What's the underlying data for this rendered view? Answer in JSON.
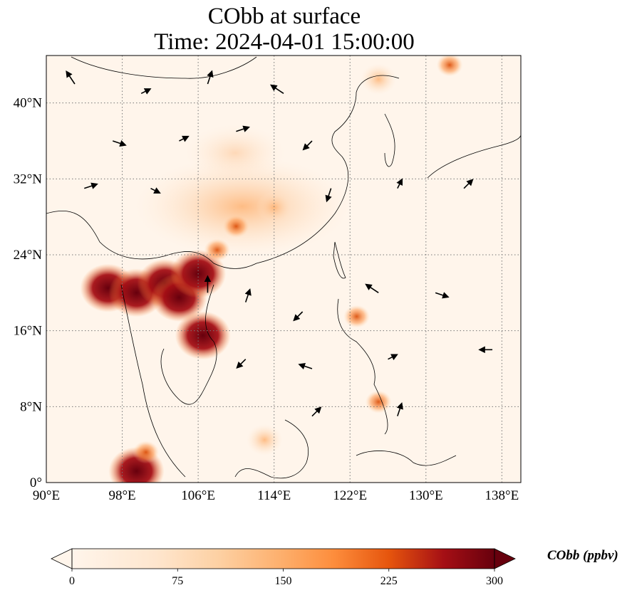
{
  "title": {
    "line1": "CObb at surface",
    "line2": "Time: 2024-04-01 15:00:00"
  },
  "map": {
    "lon_range": [
      90,
      140
    ],
    "lat_range": [
      0,
      45
    ],
    "lon_ticks": [
      {
        "value": 90,
        "label": "90°E"
      },
      {
        "value": 98,
        "label": "98°E"
      },
      {
        "value": 106,
        "label": "106°E"
      },
      {
        "value": 114,
        "label": "114°E"
      },
      {
        "value": 122,
        "label": "122°E"
      },
      {
        "value": 130,
        "label": "130°E"
      },
      {
        "value": 138,
        "label": "138°E"
      }
    ],
    "lat_ticks": [
      {
        "value": 0,
        "label": "0°"
      },
      {
        "value": 8,
        "label": "8°N"
      },
      {
        "value": 16,
        "label": "16°N"
      },
      {
        "value": 24,
        "label": "24°N"
      },
      {
        "value": 32,
        "label": "32°N"
      },
      {
        "value": 40,
        "label": "40°N"
      }
    ],
    "gridlines": true,
    "background_color": "#fff5eb",
    "hotspots": [
      {
        "lon": 96.5,
        "lat": 20.5,
        "value": 300
      },
      {
        "lon": 99.5,
        "lat": 20.0,
        "value": 300
      },
      {
        "lon": 102.5,
        "lat": 21.0,
        "value": 300
      },
      {
        "lon": 104.0,
        "lat": 19.5,
        "value": 300
      },
      {
        "lon": 106.5,
        "lat": 15.5,
        "value": 300
      },
      {
        "lon": 106.0,
        "lat": 22.0,
        "value": 280
      },
      {
        "lon": 108.0,
        "lat": 24.5,
        "value": 220
      },
      {
        "lon": 110.0,
        "lat": 27.0,
        "value": 150
      },
      {
        "lon": 114.0,
        "lat": 29.0,
        "value": 90
      },
      {
        "lon": 99.5,
        "lat": 1.2,
        "value": 260
      },
      {
        "lon": 100.5,
        "lat": 3.2,
        "value": 200
      },
      {
        "lon": 122.7,
        "lat": 17.5,
        "value": 140
      },
      {
        "lon": 125.0,
        "lat": 8.5,
        "value": 160
      },
      {
        "lon": 113.0,
        "lat": 4.5,
        "value": 130
      },
      {
        "lon": 132.5,
        "lat": 44.0,
        "value": 220
      },
      {
        "lon": 125.0,
        "lat": 42.5,
        "value": 120
      }
    ],
    "wind_vectors": [
      {
        "lon": 93,
        "lat": 42,
        "u": -2,
        "v": 3
      },
      {
        "lon": 100,
        "lat": 41,
        "u": 2,
        "v": 1
      },
      {
        "lon": 107,
        "lat": 42,
        "u": 1,
        "v": 3
      },
      {
        "lon": 115,
        "lat": 41,
        "u": -3,
        "v": 2
      },
      {
        "lon": 97,
        "lat": 36,
        "u": 3,
        "v": -1
      },
      {
        "lon": 104,
        "lat": 36,
        "u": 2,
        "v": 1
      },
      {
        "lon": 110,
        "lat": 37,
        "u": 3,
        "v": 1
      },
      {
        "lon": 118,
        "lat": 36,
        "u": -2,
        "v": -2
      },
      {
        "lon": 94,
        "lat": 31,
        "u": 3,
        "v": 1
      },
      {
        "lon": 101,
        "lat": 31,
        "u": 2,
        "v": -1
      },
      {
        "lon": 120,
        "lat": 31,
        "u": -1,
        "v": -3
      },
      {
        "lon": 127,
        "lat": 31,
        "u": 1,
        "v": 2
      },
      {
        "lon": 134,
        "lat": 31,
        "u": 2,
        "v": 2
      },
      {
        "lon": 107,
        "lat": 20,
        "u": 0,
        "v": 4
      },
      {
        "lon": 111,
        "lat": 19,
        "u": 1,
        "v": 3
      },
      {
        "lon": 117,
        "lat": 18,
        "u": -2,
        "v": -2
      },
      {
        "lon": 125,
        "lat": 20,
        "u": -3,
        "v": 2
      },
      {
        "lon": 131,
        "lat": 20,
        "u": 3,
        "v": -1
      },
      {
        "lon": 111,
        "lat": 13,
        "u": -2,
        "v": -2
      },
      {
        "lon": 118,
        "lat": 12,
        "u": -3,
        "v": 1
      },
      {
        "lon": 126,
        "lat": 13,
        "u": 2,
        "v": 1
      },
      {
        "lon": 137,
        "lat": 14,
        "u": -3,
        "v": 0
      },
      {
        "lon": 127,
        "lat": 7,
        "u": 1,
        "v": 3
      },
      {
        "lon": 118,
        "lat": 7,
        "u": 2,
        "v": 2
      }
    ]
  },
  "colorbar": {
    "label": "CObb (ppbv)",
    "min": 0,
    "max": 300,
    "ticks": [
      {
        "value": 0,
        "label": "0"
      },
      {
        "value": 75,
        "label": "75"
      },
      {
        "value": 150,
        "label": "150"
      },
      {
        "value": 225,
        "label": "225"
      },
      {
        "value": 300,
        "label": "300"
      }
    ],
    "colors": [
      "#fff5eb",
      "#fdd0a2",
      "#fd8d3c",
      "#d94801",
      "#a50f15",
      "#67000d"
    ]
  }
}
